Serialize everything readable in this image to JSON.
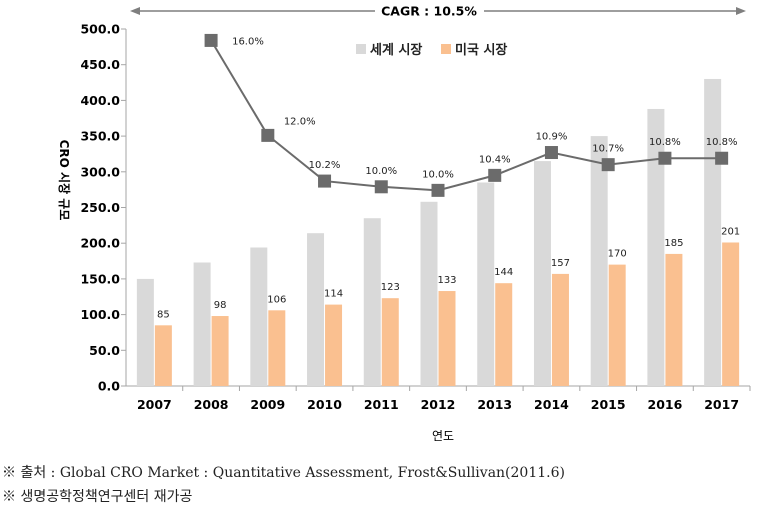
{
  "chart_data": {
    "type": "bar",
    "categories": [
      "2007",
      "2008",
      "2009",
      "2010",
      "2011",
      "2012",
      "2013",
      "2014",
      "2015",
      "2016",
      "2017"
    ],
    "series": [
      {
        "name": "세계 시장",
        "type": "bar",
        "color": "#d9d9d9",
        "values": [
          150,
          173,
          194,
          214,
          235,
          258,
          285,
          315,
          350,
          388,
          430
        ]
      },
      {
        "name": "미국 시장",
        "type": "bar",
        "color": "#fac090",
        "values": [
          85,
          98,
          106,
          114,
          123,
          133,
          144,
          157,
          170,
          185,
          201
        ],
        "labels": [
          "85",
          "98",
          "106",
          "114",
          "123",
          "133",
          "144",
          "157",
          "170",
          "185",
          "201"
        ]
      }
    ],
    "growth": {
      "color": "#6b6b6b",
      "values": [
        null,
        484,
        351,
        287,
        279,
        274,
        295,
        327,
        310,
        319,
        319
      ],
      "labels": [
        "",
        "16.0%",
        "12.0%",
        "10.2%",
        "10.0%",
        "10.0%",
        "10.4%",
        "10.9%",
        "10.7%",
        "10.8%",
        "10.8%"
      ]
    },
    "ylim": [
      0,
      500
    ],
    "yticks": [
      "0.0",
      "50.0",
      "100.0",
      "150.0",
      "200.0",
      "250.0",
      "300.0",
      "350.0",
      "400.0",
      "450.0",
      "500.0"
    ],
    "ylabel": "CRO 시장 규모",
    "xlabel": "연도",
    "cagr_label": "CAGR : 10.5%",
    "legend_position": "top-right",
    "grid": false
  },
  "notes": {
    "source": "※ 출처 : Global CRO Market : Quantitative Assessment, Frost&Sullivan(2011.6)",
    "editor": "※ 생명공학정책연구센터 재가공"
  }
}
